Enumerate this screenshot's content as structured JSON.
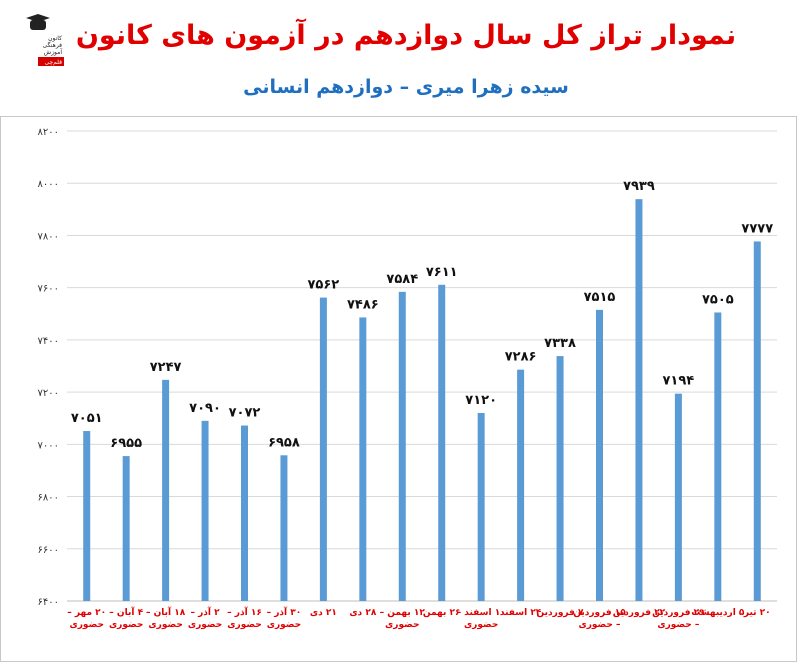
{
  "page": {
    "title": "نمودار تراز کل سال دوازدهم در آزمون های کانون",
    "subtitle": "سیده زهرا میری – دوازدهم انسانی",
    "logo_text": [
      "کانون",
      "فرهنگی",
      "آموزش",
      "قلم‌چی"
    ]
  },
  "chart_data": {
    "type": "bar",
    "title": "نمودار تراز کل سال دوازدهم در آزمون های کانون",
    "subtitle": "سیده زهرا میری – دوازدهم انسانی",
    "xlabel": "",
    "ylabel": "",
    "ylim": [
      6400,
      8200
    ],
    "yticks": [
      6400,
      6600,
      6800,
      7000,
      7200,
      7400,
      7600,
      7800,
      8000,
      8200
    ],
    "grid": true,
    "bar_color": "#5b9bd5",
    "label_color": "#e00000",
    "categories": [
      [
        "۲۰ مهر –",
        "حضوری"
      ],
      [
        "۴ آبان –",
        "حضوری"
      ],
      [
        "۱۸ آبان –",
        "حضوری"
      ],
      [
        "۲ آذر –",
        "حضوری"
      ],
      [
        "۱۶ آذر –",
        "حضوری"
      ],
      [
        "۳۰ آذر –",
        "حضوری"
      ],
      [
        "۲۱ دی"
      ],
      [
        "۲۸ دی"
      ],
      [
        "۱۲ بهمن –",
        "حضوری"
      ],
      [
        "۲۶ بهمن"
      ],
      [
        "۱۰ اسفند –",
        "حضوری"
      ],
      [
        "۲۴ اسفند"
      ],
      [
        "۷ فروردین"
      ],
      [
        "۱۵ فروردین",
        "– حضوری"
      ],
      [
        "۲۲ فروردین"
      ],
      [
        "۲۹ فروردین",
        "– حضوری"
      ],
      [
        "۵ اردیبهشت"
      ],
      [
        "۲۰ تیر"
      ]
    ],
    "values": [
      7051,
      6955,
      7247,
      7090,
      7072,
      6958,
      7562,
      7486,
      7584,
      7611,
      7120,
      7286,
      7338,
      7515,
      7939,
      7194,
      7505,
      7777
    ],
    "data_labels": [
      "۷۰۵۱",
      "۶۹۵۵",
      "۷۲۴۷",
      "۷۰۹۰",
      "۷۰۷۲",
      "۶۹۵۸",
      "۷۵۶۲",
      "۷۴۸۶",
      "۷۵۸۴",
      "۷۶۱۱",
      "۷۱۲۰",
      "۷۲۸۶",
      "۷۳۳۸",
      "۷۵۱۵",
      "۷۹۳۹",
      "۷۱۹۴",
      "۷۵۰۵",
      "۷۷۷۷"
    ],
    "ytick_labels": [
      "۶۴۰۰",
      "۶۶۰۰",
      "۶۸۰۰",
      "۷۰۰۰",
      "۷۲۰۰",
      "۷۴۰۰",
      "۷۶۰۰",
      "۷۸۰۰",
      "۸۰۰۰",
      "۸۲۰۰"
    ]
  }
}
